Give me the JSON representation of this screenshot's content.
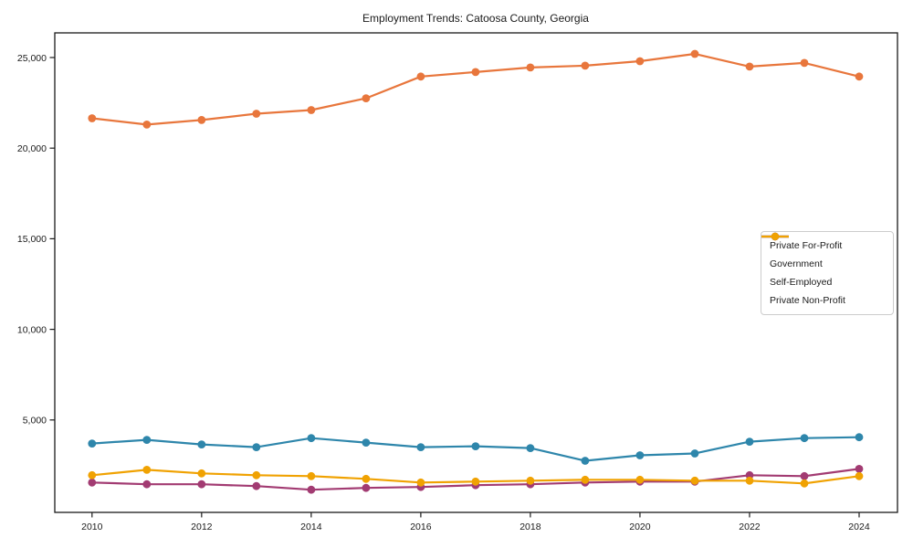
{
  "chart_data": {
    "type": "line",
    "title": "Employment Trends: Catoosa County, Georgia",
    "x": [
      2010,
      2011,
      2012,
      2013,
      2014,
      2015,
      2016,
      2017,
      2018,
      2019,
      2020,
      2021,
      2022,
      2023,
      2024
    ],
    "series": [
      {
        "name": "Private For-Profit",
        "color": "#e8763c",
        "values": [
          21650,
          21300,
          21550,
          21900,
          22100,
          22750,
          23950,
          24200,
          24450,
          24550,
          24800,
          25200,
          24500,
          24700,
          23950
        ]
      },
      {
        "name": "Government",
        "color": "#2e86ab",
        "values": [
          3700,
          3900,
          3650,
          3500,
          4000,
          3750,
          3500,
          3550,
          3450,
          2750,
          3050,
          3150,
          3800,
          4000,
          4050
        ]
      },
      {
        "name": "Self-Employed",
        "color": "#a23b72",
        "values": [
          1550,
          1450,
          1450,
          1350,
          1150,
          1250,
          1300,
          1400,
          1450,
          1550,
          1600,
          1600,
          1950,
          1900,
          2300
        ]
      },
      {
        "name": "Private Non-Profit",
        "color": "#f0a202",
        "values": [
          1950,
          2250,
          2050,
          1950,
          1900,
          1750,
          1550,
          1600,
          1650,
          1700,
          1700,
          1650,
          1650,
          1500,
          1900
        ]
      }
    ],
    "x_axis": {
      "ticks": [
        2010,
        2012,
        2014,
        2016,
        2018,
        2020,
        2022,
        2024
      ],
      "tick_labels": [
        "2010",
        "2012",
        "2014",
        "2016",
        "2018",
        "2020",
        "2022",
        "2024"
      ]
    },
    "y_axis": {
      "ticks": [
        5000,
        10000,
        15000,
        20000,
        25000
      ],
      "tick_labels": [
        "5,000",
        "10,000",
        "15,000",
        "20,000",
        "25,000"
      ]
    },
    "xlim": [
      2009.32,
      2024.7
    ],
    "ylim": [
      -100,
      26360
    ],
    "grid": false,
    "legend_position": "center right",
    "marker": "circle"
  }
}
